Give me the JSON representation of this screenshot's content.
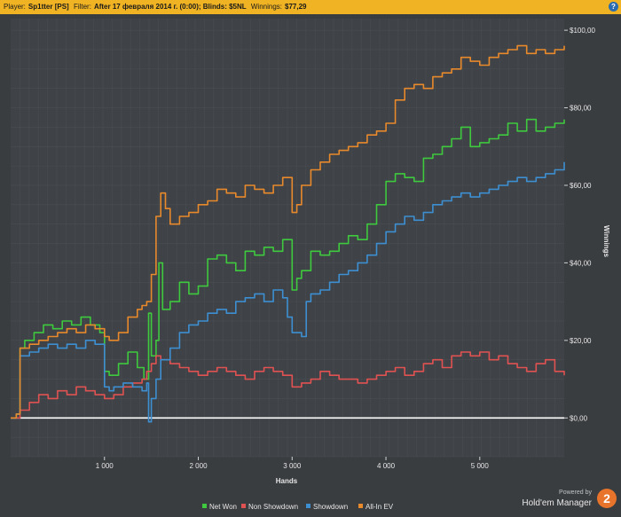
{
  "header": {
    "player_label": "Player:",
    "player_value": "Sp1tter [PS]",
    "filter_label": "Filter:",
    "filter_value": "After 17 февраля 2014 г. (0:00); Blinds: $5NL",
    "winnings_label": "Winnings:",
    "winnings_value": "$77,29",
    "help_symbol": "?"
  },
  "branding": {
    "powered_by": "Powered by",
    "product": "Hold'em Manager",
    "badge": "2"
  },
  "chart_data": {
    "type": "line",
    "xlabel": "Hands",
    "ylabel": "Winnings",
    "xlim": [
      0,
      5900
    ],
    "ylim": [
      -10,
      103
    ],
    "x_ticks": [
      1000,
      2000,
      3000,
      4000,
      5000
    ],
    "x_tick_labels": [
      "1 000",
      "2 000",
      "3 000",
      "4 000",
      "5 000"
    ],
    "y_ticks": [
      0,
      20,
      40,
      60,
      80,
      100
    ],
    "y_tick_labels": [
      "$0,00",
      "$20,00",
      "$40,00",
      "$60,00",
      "$80,00",
      "$100,00"
    ],
    "y_axis_position": "right",
    "grid": true,
    "legend_position": "bottom",
    "series": [
      {
        "name": "Net Won",
        "color": "#3ec93e",
        "x": [
          0,
          60,
          100,
          150,
          250,
          350,
          450,
          550,
          650,
          750,
          850,
          950,
          1000,
          1050,
          1150,
          1250,
          1350,
          1420,
          1470,
          1500,
          1550,
          1580,
          1620,
          1700,
          1800,
          1900,
          2000,
          2100,
          2200,
          2300,
          2400,
          2500,
          2600,
          2700,
          2800,
          2900,
          3000,
          3050,
          3100,
          3200,
          3300,
          3400,
          3500,
          3600,
          3700,
          3800,
          3900,
          4000,
          4100,
          4200,
          4300,
          4400,
          4500,
          4600,
          4700,
          4800,
          4900,
          5000,
          5100,
          5200,
          5300,
          5400,
          5500,
          5600,
          5700,
          5800,
          5900
        ],
        "y": [
          0,
          1,
          18,
          20,
          22,
          24,
          23,
          25,
          24,
          26,
          24,
          22,
          12,
          11,
          14,
          17,
          13,
          10,
          27,
          16,
          20,
          40,
          28,
          30,
          35,
          32,
          34,
          41,
          42,
          40,
          38,
          43,
          42,
          44,
          43,
          46,
          33,
          36,
          38,
          43,
          42,
          43,
          45,
          47,
          46,
          50,
          55,
          61,
          63,
          62,
          61,
          67,
          68,
          70,
          72,
          75,
          70,
          71,
          72,
          73,
          76,
          74,
          77,
          74,
          75,
          76,
          77
        ]
      },
      {
        "name": "Non Showdown",
        "color": "#e05252",
        "x": [
          0,
          100,
          200,
          300,
          400,
          500,
          600,
          700,
          800,
          900,
          1000,
          1100,
          1200,
          1300,
          1400,
          1450,
          1500,
          1550,
          1600,
          1700,
          1800,
          1900,
          2000,
          2100,
          2200,
          2300,
          2400,
          2500,
          2600,
          2700,
          2800,
          2900,
          3000,
          3100,
          3200,
          3300,
          3400,
          3500,
          3600,
          3700,
          3800,
          3900,
          4000,
          4100,
          4200,
          4300,
          4400,
          4500,
          4600,
          4700,
          4800,
          4900,
          5000,
          5100,
          5200,
          5300,
          5400,
          5500,
          5600,
          5700,
          5800,
          5900
        ],
        "y": [
          0,
          2,
          4,
          6,
          5,
          7,
          6,
          8,
          7,
          6,
          5,
          6,
          8,
          9,
          10,
          12,
          14,
          16,
          15,
          14,
          13,
          12,
          11,
          12,
          13,
          12,
          11,
          10,
          12,
          13,
          12,
          11,
          8,
          9,
          10,
          12,
          11,
          10,
          10,
          9,
          10,
          11,
          12,
          13,
          11,
          12,
          14,
          15,
          13,
          16,
          17,
          16,
          17,
          15,
          16,
          14,
          13,
          12,
          14,
          15,
          12,
          11
        ]
      },
      {
        "name": "Showdown",
        "color": "#3d8fd1",
        "x": [
          0,
          60,
          100,
          200,
          300,
          400,
          500,
          600,
          700,
          800,
          900,
          1000,
          1050,
          1100,
          1200,
          1300,
          1400,
          1450,
          1470,
          1500,
          1550,
          1600,
          1700,
          1800,
          1900,
          2000,
          2100,
          2200,
          2300,
          2400,
          2500,
          2600,
          2700,
          2800,
          2900,
          2950,
          3000,
          3100,
          3150,
          3200,
          3300,
          3400,
          3500,
          3600,
          3700,
          3800,
          3900,
          4000,
          4100,
          4200,
          4300,
          4400,
          4500,
          4600,
          4700,
          4800,
          4900,
          5000,
          5100,
          5200,
          5300,
          5400,
          5500,
          5600,
          5700,
          5800,
          5900
        ],
        "y": [
          0,
          1,
          16,
          17,
          18,
          19,
          18,
          19,
          18,
          20,
          19,
          8,
          7,
          8,
          9,
          8,
          7,
          9,
          -1,
          5,
          10,
          15,
          18,
          22,
          24,
          25,
          27,
          28,
          27,
          30,
          31,
          32,
          30,
          33,
          31,
          26,
          22,
          21,
          30,
          32,
          33,
          35,
          37,
          38,
          40,
          42,
          45,
          48,
          50,
          52,
          51,
          53,
          55,
          56,
          57,
          58,
          57,
          58,
          59,
          60,
          61,
          62,
          61,
          62,
          63,
          64,
          66
        ]
      },
      {
        "name": "All-In EV",
        "color": "#e8892b",
        "x": [
          0,
          60,
          100,
          200,
          300,
          400,
          500,
          600,
          700,
          800,
          900,
          1000,
          1050,
          1150,
          1250,
          1350,
          1400,
          1450,
          1500,
          1550,
          1600,
          1650,
          1700,
          1800,
          1900,
          2000,
          2100,
          2200,
          2300,
          2400,
          2500,
          2600,
          2700,
          2800,
          2900,
          3000,
          3050,
          3100,
          3200,
          3300,
          3400,
          3500,
          3600,
          3700,
          3800,
          3900,
          4000,
          4100,
          4200,
          4300,
          4400,
          4500,
          4600,
          4700,
          4800,
          4900,
          5000,
          5100,
          5200,
          5300,
          5400,
          5500,
          5600,
          5700,
          5800,
          5900
        ],
        "y": [
          0,
          1,
          18,
          19,
          20,
          21,
          22,
          23,
          22,
          24,
          23,
          21,
          20,
          22,
          26,
          28,
          29,
          30,
          37,
          52,
          58,
          54,
          50,
          52,
          53,
          55,
          56,
          59,
          58,
          57,
          60,
          59,
          58,
          60,
          62,
          53,
          55,
          60,
          64,
          66,
          68,
          69,
          70,
          71,
          73,
          74,
          76,
          82,
          85,
          86,
          85,
          88,
          89,
          90,
          93,
          92,
          91,
          93,
          94,
          95,
          96,
          94,
          95,
          94,
          95,
          96
        ]
      }
    ]
  }
}
